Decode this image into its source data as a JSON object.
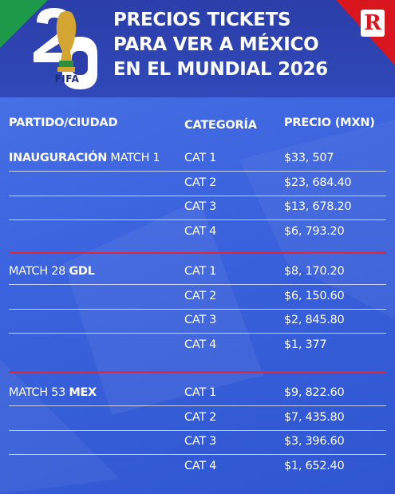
{
  "header": {
    "title_lines": [
      "PRECIOS TICKETS",
      "PARA VER A MÉXICO",
      "EN EL MUNDIAL 2026"
    ],
    "logo_text": "FIFA",
    "badge_letter": "R"
  },
  "columns": {
    "match": "PARTIDO/CIUDAD",
    "category": "CATEGORÍA",
    "price": "PRECIO (MXN)"
  },
  "groups": [
    {
      "match_bold": "INAUGURACIÓN",
      "match_rest": " MATCH 1",
      "bold_first": true,
      "rows": [
        {
          "category": "CAT 1",
          "price": "$33, 507"
        },
        {
          "category": "CAT 2",
          "price": "$23, 684.40"
        },
        {
          "category": "CAT 3",
          "price": "$13, 678.20"
        },
        {
          "category": "CAT 4",
          "price": "$6, 793.20"
        }
      ]
    },
    {
      "match_plain": "MATCH 28 ",
      "match_bold": "GDL",
      "bold_first": false,
      "rows": [
        {
          "category": "CAT 1",
          "price": "$8, 170.20"
        },
        {
          "category": "CAT 2",
          "price": "$6, 150.60"
        },
        {
          "category": "CAT 3",
          "price": "$2, 845.80"
        },
        {
          "category": "CAT 4",
          "price": "$1, 377"
        }
      ]
    },
    {
      "match_plain": "MATCH 53 ",
      "match_bold": "MEX",
      "bold_first": false,
      "rows": [
        {
          "category": "CAT 1",
          "price": "$9, 822.60"
        },
        {
          "category": "CAT 2",
          "price": "$7, 435.80"
        },
        {
          "category": "CAT 3",
          "price": "$3, 396.60"
        },
        {
          "category": "CAT 4",
          "price": "$1, 652.40"
        }
      ]
    }
  ],
  "colors": {
    "background": "#3b63de",
    "header": "#2b3ea9",
    "separator": "#e2263a",
    "accent_red": "#d9161e",
    "accent_green": "#1e9a4a"
  },
  "icons": {
    "logo": "world-cup-2026-trophy-icon",
    "badge": "record-r-logo-icon"
  }
}
